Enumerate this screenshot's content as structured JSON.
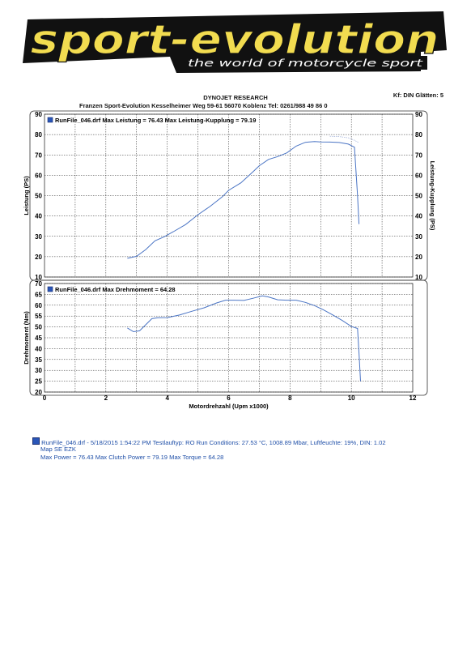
{
  "logo": {
    "main": "sport-evolution",
    "tagline": "the world of motorcycle sport"
  },
  "header": {
    "company": "DYNOJET RESEARCH",
    "address": "Franzen Sport-Evolution   Kesselheimer Weg 59-61    56070 Koblenz    Tel: 0261/988 49 86 0",
    "settings": "Kf: DIN  Glätten: 5"
  },
  "colors": {
    "curve": "#4a74c4",
    "clutch_curve": "#a9b8dc",
    "grid": "#222222",
    "frame": "#333333",
    "text_blue": "#1f4fa8",
    "logo_yellow": "#f2dc50"
  },
  "icons": {
    "series_marker": "square-marker-icon"
  },
  "chart_data": [
    {
      "type": "line",
      "legend": "RunFile_046.drf Max Leistung = 76.43     Max Leistung-Kupplung = 79.19",
      "ylabel": "Leistung (PS)",
      "ylabel_right": "Leistung-Kupplung (PS)",
      "ylim": [
        10,
        90
      ],
      "yticks": [
        10,
        20,
        30,
        40,
        50,
        60,
        70,
        80,
        90
      ],
      "xlim": [
        0,
        12
      ],
      "grid": true,
      "series": [
        {
          "name": "RunFile_046.drf Max Leistung",
          "x": [
            2.7,
            3.0,
            3.3,
            3.6,
            3.9,
            4.2,
            4.6,
            5.0,
            5.4,
            5.8,
            6.0,
            6.4,
            6.8,
            7.0,
            7.3,
            7.6,
            7.9,
            8.2,
            8.5,
            8.8,
            9.0,
            9.3,
            9.6,
            9.9,
            10.1,
            10.2,
            10.25
          ],
          "y": [
            19.2,
            20.2,
            23.5,
            27.8,
            29.8,
            32.3,
            35.8,
            40.6,
            44.8,
            49.5,
            52.6,
            56.3,
            61.8,
            64.7,
            67.8,
            69.2,
            71.0,
            74.3,
            76.2,
            76.6,
            76.4,
            76.3,
            76.1,
            75.3,
            73.8,
            50.0,
            36.0
          ]
        },
        {
          "name": "Max Leistung-Kupplung",
          "x": [
            9.3,
            9.6,
            9.9,
            10.1,
            10.25
          ],
          "y": [
            79.19,
            79.0,
            78.4,
            77.2,
            76.0
          ]
        }
      ]
    },
    {
      "type": "line",
      "legend": "RunFile_046.drf Max Drehmoment = 64.28",
      "ylabel": "Drehmoment (Nm)",
      "xlabel": "Motordrehzahl (Upm x1000)",
      "ylim": [
        20,
        70
      ],
      "yticks": [
        20,
        25,
        30,
        35,
        40,
        45,
        50,
        55,
        60,
        65,
        70
      ],
      "xlim": [
        0,
        12
      ],
      "xticks": [
        0,
        2,
        4,
        6,
        8,
        10,
        12
      ],
      "grid": true,
      "series": [
        {
          "name": "RunFile_046.drf Max Drehmoment",
          "x": [
            2.7,
            2.9,
            3.1,
            3.3,
            3.5,
            3.7,
            4.0,
            4.4,
            4.8,
            5.2,
            5.6,
            5.9,
            6.2,
            6.5,
            6.8,
            7.1,
            7.3,
            7.6,
            7.9,
            8.2,
            8.5,
            8.8,
            9.1,
            9.4,
            9.7,
            10.0,
            10.2,
            10.25,
            10.3
          ],
          "y": [
            49.5,
            47.8,
            48.2,
            51.0,
            53.8,
            54.2,
            54.3,
            55.5,
            57.2,
            58.8,
            61.0,
            62.3,
            62.3,
            62.2,
            63.2,
            64.28,
            63.8,
            62.5,
            62.3,
            62.3,
            61.3,
            59.8,
            57.8,
            55.5,
            53.0,
            50.2,
            49.3,
            38.0,
            25.0
          ]
        }
      ]
    }
  ],
  "footer": {
    "line1": "RunFile_046.drf - 5/18/2015 1:54:22 PM  Testlauftyp: RO  Run Conditions: 27.53 °C, 1008.89 Mbar,  Luftfeuchte: 19%, DIN: 1.02",
    "line2": "Map SE EZK",
    "line3": "Max Power = 76.43  Max Clutch Power = 79.19  Max Torque = 64.28"
  }
}
